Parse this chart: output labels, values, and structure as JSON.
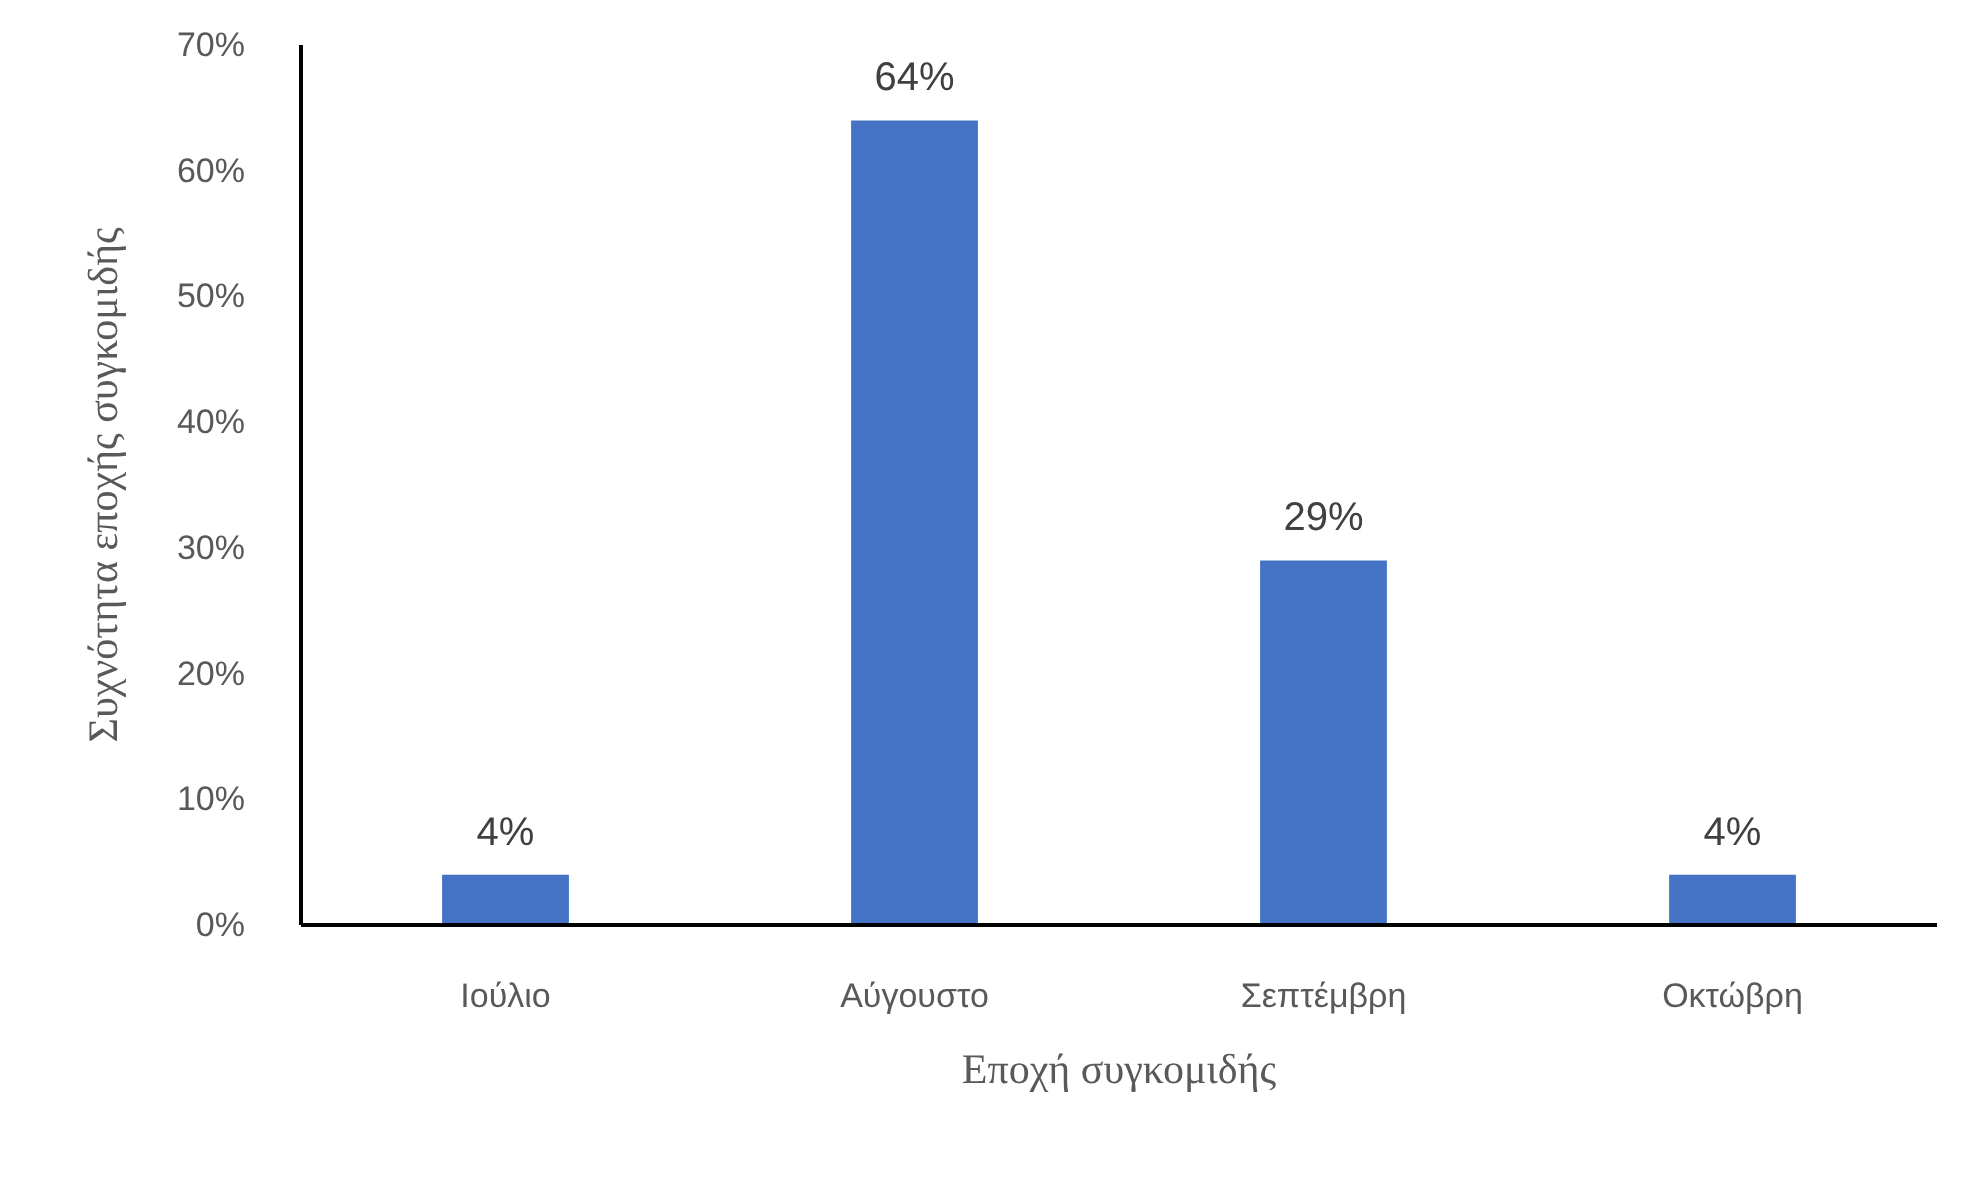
{
  "chart_data": {
    "type": "bar",
    "xlabel": "Εποχή συγκομιδής",
    "ylabel": "Συχνότητα εποχής συγκομιδής",
    "categories": [
      "Ιούλιο",
      "Αύγουστο",
      "Σεπτέμβρη",
      "Οκτώβρη"
    ],
    "values": [
      4,
      64,
      29,
      4
    ],
    "color": "#4472c4",
    "value_labels": [
      "4%",
      "64%",
      "29%",
      "4%"
    ],
    "ylim": [
      0,
      70
    ],
    "yticks": [
      {
        "value": 0,
        "label": "0%"
      },
      {
        "value": 10,
        "label": "10%"
      },
      {
        "value": 20,
        "label": "20%"
      },
      {
        "value": 30,
        "label": "30%"
      },
      {
        "value": 40,
        "label": "40%"
      },
      {
        "value": 50,
        "label": "50%"
      },
      {
        "value": 60,
        "label": "60%"
      },
      {
        "value": 70,
        "label": "70%"
      }
    ],
    "grid": false
  }
}
